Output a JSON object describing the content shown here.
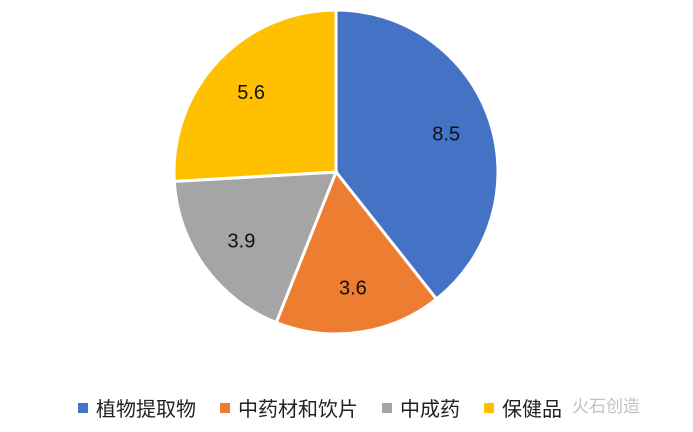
{
  "chart_data": {
    "type": "pie",
    "categories": [
      "植物提取物",
      "中药材和饮片",
      "中成药",
      "保健品"
    ],
    "values": [
      8.5,
      3.6,
      3.9,
      5.6
    ],
    "colors": [
      "#4472C4",
      "#ED7D31",
      "#A5A5A5",
      "#FFC000"
    ],
    "start_angle": "top",
    "direction": "clockwise",
    "data_labels": [
      "8.5",
      "3.6",
      "3.9",
      "5.6"
    ],
    "legend_placement": "bottom"
  },
  "watermark": "火石创造"
}
